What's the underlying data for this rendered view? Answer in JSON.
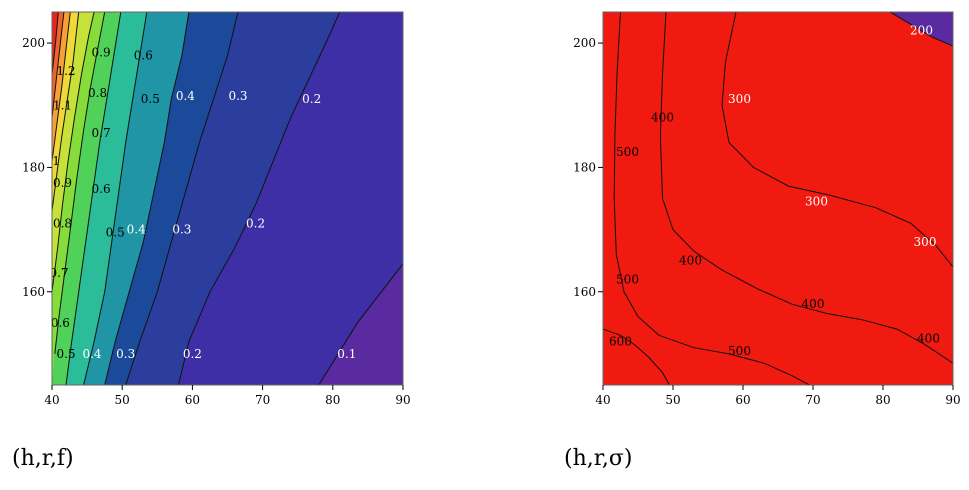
{
  "chart_data": [
    {
      "type": "contour",
      "title": "",
      "caption": "(h,r,f)",
      "xlim": [
        40,
        90
      ],
      "ylim": [
        145,
        205
      ],
      "xticks": [
        "40",
        "50",
        "60",
        "70",
        "80",
        "90"
      ],
      "yticks": [
        "160",
        "180",
        "200"
      ],
      "levels": [
        0.1,
        0.2,
        0.3,
        0.4,
        0.5,
        0.6,
        0.7,
        0.8,
        0.9,
        1.0,
        1.1,
        1.2
      ],
      "fill_colors": [
        "#5a2aa0",
        "#3e2fa6",
        "#2b3e9e",
        "#1c4a9a",
        "#1f95a5",
        "#2bbd99",
        "#4fd15a",
        "#86dc3a",
        "#c6e23a",
        "#efd938",
        "#f7a039",
        "#f0622a",
        "#e8261e"
      ],
      "contours": [
        {
          "level": "0.1",
          "pts": [
            [
              78.0,
              145
            ],
            [
              83.5,
              155
            ],
            [
              90,
              164.5
            ]
          ]
        },
        {
          "level": "0.2",
          "pts": [
            [
              58.0,
              145
            ],
            [
              59.5,
              152
            ],
            [
              62.5,
              160
            ],
            [
              66.0,
              167
            ],
            [
              69.0,
              174
            ],
            [
              71.5,
              181
            ],
            [
              74.0,
              188
            ],
            [
              76.5,
              194
            ],
            [
              79.0,
              200
            ],
            [
              81.0,
              205
            ]
          ]
        },
        {
          "level": "0.3",
          "pts": [
            [
              50.5,
              145
            ],
            [
              52.5,
              152
            ],
            [
              55.0,
              160
            ],
            [
              57.0,
              168
            ],
            [
              59.0,
              176
            ],
            [
              61.0,
              184
            ],
            [
              63.0,
              191
            ],
            [
              65.0,
              198
            ],
            [
              66.5,
              205
            ]
          ]
        },
        {
          "level": "0.4",
          "pts": [
            [
              47.5,
              145
            ],
            [
              49.0,
              152
            ],
            [
              51.0,
              160
            ],
            [
              53.0,
              168
            ],
            [
              54.5,
              176
            ],
            [
              56.0,
              184
            ],
            [
              57.0,
              191
            ],
            [
              58.5,
              198
            ],
            [
              59.5,
              205
            ]
          ]
        },
        {
          "level": "0.5",
          "pts": [
            [
              44.5,
              145
            ],
            [
              46.0,
              152
            ],
            [
              47.5,
              160
            ],
            [
              48.5,
              168
            ],
            [
              49.5,
              176
            ],
            [
              50.5,
              184
            ],
            [
              51.5,
              191
            ],
            [
              52.5,
              198
            ],
            [
              53.5,
              205
            ]
          ]
        },
        {
          "level": "0.6",
          "pts": [
            [
              42.0,
              145
            ],
            [
              42.8,
              152
            ],
            [
              43.8,
              160
            ],
            [
              44.8,
              168
            ],
            [
              45.8,
              176
            ],
            [
              46.8,
              184
            ],
            [
              47.8,
              191
            ],
            [
              48.8,
              198
            ],
            [
              49.8,
              205
            ]
          ]
        },
        {
          "level": "0.7",
          "pts": [
            [
              40.4,
              150
            ],
            [
              41.0,
              156
            ],
            [
              41.8,
              163
            ],
            [
              42.6,
              170
            ],
            [
              43.5,
              178
            ],
            [
              44.5,
              186
            ],
            [
              45.5,
              193
            ],
            [
              46.5,
              199
            ],
            [
              47.5,
              205
            ]
          ]
        },
        {
          "level": "0.8",
          "pts": [
            [
              40.0,
              160
            ],
            [
              40.8,
              167
            ],
            [
              41.5,
              174
            ],
            [
              42.3,
              181
            ],
            [
              43.2,
              188
            ],
            [
              44.2,
              195
            ],
            [
              45.2,
              201
            ],
            [
              46.0,
              205
            ]
          ]
        },
        {
          "level": "0.9",
          "pts": [
            [
              40.0,
              173
            ],
            [
              40.7,
              179
            ],
            [
              41.4,
              185
            ],
            [
              42.2,
              191
            ],
            [
              43.0,
              197
            ],
            [
              43.8,
              205
            ]
          ]
        },
        {
          "level": "1",
          "pts": [
            [
              40.0,
              181
            ],
            [
              40.7,
              187
            ],
            [
              41.4,
              193
            ],
            [
              42.0,
              199
            ],
            [
              42.6,
              205
            ]
          ]
        },
        {
          "level": "1.1",
          "pts": [
            [
              40.0,
              188
            ],
            [
              40.6,
              194
            ],
            [
              41.2,
              200
            ],
            [
              41.7,
              205
            ]
          ]
        },
        {
          "level": "1.2",
          "pts": [
            [
              40.0,
              195
            ],
            [
              40.5,
              200
            ],
            [
              40.9,
              205
            ]
          ]
        }
      ],
      "labels": [
        {
          "text": "0.9",
          "x": 47.0,
          "y": 198.5,
          "color": "#000"
        },
        {
          "text": "0.6",
          "x": 53.0,
          "y": 198.0,
          "color": "#000"
        },
        {
          "text": "1.2",
          "x": 42.0,
          "y": 195.5,
          "color": "#000"
        },
        {
          "text": "0.8",
          "x": 46.5,
          "y": 192.0,
          "color": "#000"
        },
        {
          "text": "0.5",
          "x": 54.0,
          "y": 191.0,
          "color": "#000"
        },
        {
          "text": "0.4",
          "x": 59.0,
          "y": 191.5,
          "color": "#ffffff"
        },
        {
          "text": "0.3",
          "x": 66.5,
          "y": 191.5,
          "color": "#ffffff"
        },
        {
          "text": "0.2",
          "x": 77.0,
          "y": 191.0,
          "color": "#ffffff"
        },
        {
          "text": "1.1",
          "x": 41.5,
          "y": 190.0,
          "color": "#000"
        },
        {
          "text": "0.7",
          "x": 47.0,
          "y": 185.5,
          "color": "#000"
        },
        {
          "text": "1",
          "x": 40.6,
          "y": 181.0,
          "color": "#000"
        },
        {
          "text": "0.9",
          "x": 41.5,
          "y": 177.5,
          "color": "#000"
        },
        {
          "text": "0.6",
          "x": 47.0,
          "y": 176.5,
          "color": "#000"
        },
        {
          "text": "0.8",
          "x": 41.5,
          "y": 171.0,
          "color": "#000"
        },
        {
          "text": "0.5",
          "x": 49.0,
          "y": 169.5,
          "color": "#000"
        },
        {
          "text": "0.4",
          "x": 52.0,
          "y": 170.0,
          "color": "#ffffff"
        },
        {
          "text": "0.3",
          "x": 58.5,
          "y": 170.0,
          "color": "#ffffff"
        },
        {
          "text": "0.2",
          "x": 69.0,
          "y": 171.0,
          "color": "#ffffff"
        },
        {
          "text": "0.7",
          "x": 41.0,
          "y": 163.0,
          "color": "#000"
        },
        {
          "text": "0.6",
          "x": 41.2,
          "y": 155.0,
          "color": "#000"
        },
        {
          "text": "0.5",
          "x": 42.0,
          "y": 150.0,
          "color": "#000"
        },
        {
          "text": "0.4",
          "x": 45.7,
          "y": 150.0,
          "color": "#ffffff"
        },
        {
          "text": "0.3",
          "x": 50.5,
          "y": 150.0,
          "color": "#ffffff"
        },
        {
          "text": "0.2",
          "x": 60.0,
          "y": 150.0,
          "color": "#ffffff"
        },
        {
          "text": "0.1",
          "x": 82.0,
          "y": 150.0,
          "color": "#ffffff"
        }
      ]
    },
    {
      "type": "contour",
      "title": "",
      "caption": "(h,r,σ)",
      "xlim": [
        40,
        90
      ],
      "ylim": [
        145,
        205
      ],
      "xticks": [
        "40",
        "50",
        "60",
        "70",
        "80",
        "90"
      ],
      "yticks": [
        "160",
        "180",
        "200"
      ],
      "levels": [
        200,
        300,
        400,
        500,
        600
      ],
      "fill_colors": [
        "#5a2aa0",
        "#1d3a98",
        "#1f98a0",
        "#2fc13a",
        "#f5c535",
        "#f01a10"
      ],
      "contours": [
        {
          "level": "600",
          "pts": [
            [
              40.0,
              154.0
            ],
            [
              42.5,
              153.0
            ],
            [
              44.5,
              151.5
            ],
            [
              46.5,
              149.5
            ],
            [
              48.5,
              147.0
            ],
            [
              49.5,
              145.0
            ]
          ]
        },
        {
          "level": "500",
          "pts": [
            [
              42.5,
              205.0
            ],
            [
              42.0,
              195.0
            ],
            [
              41.7,
              185.0
            ],
            [
              41.6,
              175.0
            ],
            [
              41.9,
              166.0
            ],
            [
              43.0,
              160.0
            ],
            [
              45.0,
              156.0
            ],
            [
              48.0,
              153.0
            ],
            [
              53.0,
              151.0
            ],
            [
              58.0,
              150.0
            ],
            [
              63.0,
              148.5
            ],
            [
              67.0,
              146.5
            ],
            [
              69.5,
              145.0
            ]
          ]
        },
        {
          "level": "400",
          "pts": [
            [
              49.0,
              205.0
            ],
            [
              48.5,
              195.0
            ],
            [
              48.2,
              185.0
            ],
            [
              48.5,
              175.0
            ],
            [
              50.0,
              170.0
            ],
            [
              53.0,
              166.5
            ],
            [
              57.0,
              163.5
            ],
            [
              62.0,
              160.5
            ],
            [
              67.0,
              158.0
            ],
            [
              72.0,
              156.5
            ],
            [
              77.0,
              155.5
            ],
            [
              82.0,
              154.0
            ],
            [
              86.0,
              151.5
            ],
            [
              90.0,
              148.5
            ]
          ]
        },
        {
          "level": "300",
          "pts": [
            [
              59.0,
              205.0
            ],
            [
              57.5,
              197.0
            ],
            [
              57.0,
              190.0
            ],
            [
              58.0,
              184.0
            ],
            [
              61.5,
              180.0
            ],
            [
              66.5,
              177.0
            ],
            [
              72.5,
              175.5
            ],
            [
              79.0,
              173.5
            ],
            [
              84.0,
              171.0
            ],
            [
              87.5,
              167.5
            ],
            [
              90.0,
              164.0
            ]
          ]
        },
        {
          "level": "200",
          "pts": [
            [
              81.0,
              205.0
            ],
            [
              84.0,
              203.0
            ],
            [
              87.0,
              201.0
            ],
            [
              90.0,
              199.5
            ]
          ]
        }
      ],
      "labels": [
        {
          "text": "200",
          "x": 85.5,
          "y": 202.0,
          "color": "#ffffff"
        },
        {
          "text": "300",
          "x": 59.5,
          "y": 191.0,
          "color": "#ffffff"
        },
        {
          "text": "400",
          "x": 48.5,
          "y": 188.0,
          "color": "#000"
        },
        {
          "text": "500",
          "x": 43.5,
          "y": 182.5,
          "color": "#000"
        },
        {
          "text": "300",
          "x": 70.5,
          "y": 174.5,
          "color": "#ffffff"
        },
        {
          "text": "300",
          "x": 86.0,
          "y": 168.0,
          "color": "#ffffff"
        },
        {
          "text": "400",
          "x": 52.5,
          "y": 165.0,
          "color": "#000"
        },
        {
          "text": "500",
          "x": 43.5,
          "y": 162.0,
          "color": "#000"
        },
        {
          "text": "400",
          "x": 70.0,
          "y": 158.0,
          "color": "#000"
        },
        {
          "text": "400",
          "x": 86.5,
          "y": 152.5,
          "color": "#000"
        },
        {
          "text": "600",
          "x": 42.5,
          "y": 152.0,
          "color": "#000"
        },
        {
          "text": "500",
          "x": 59.5,
          "y": 150.5,
          "color": "#000"
        }
      ]
    }
  ]
}
